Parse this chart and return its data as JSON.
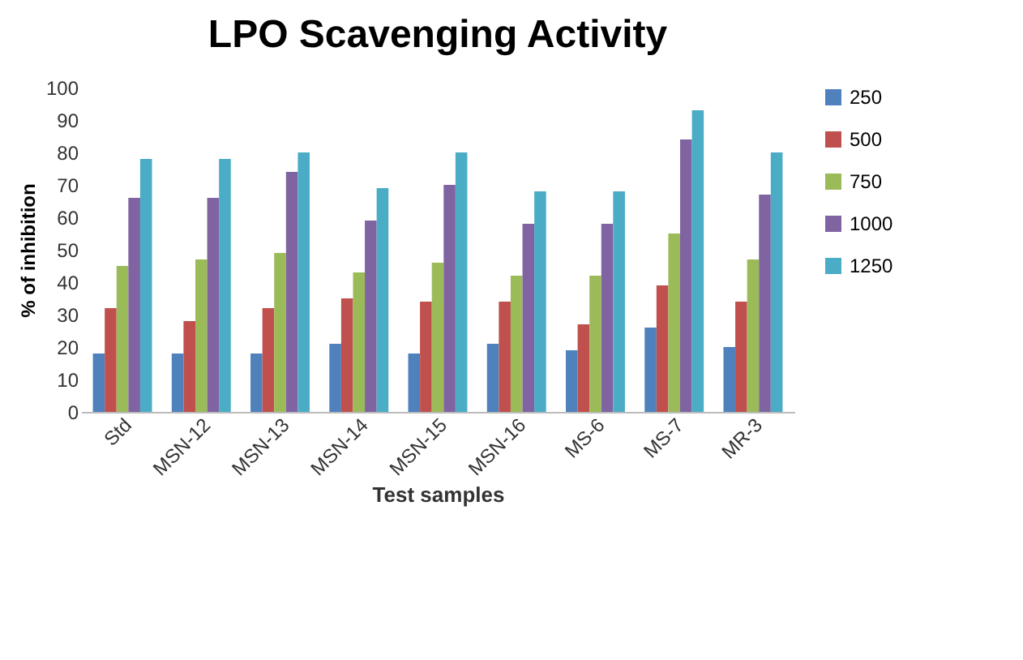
{
  "chart_data": {
    "type": "bar",
    "title": "LPO Scavenging Activity",
    "xlabel": "Test samples",
    "ylabel": "% of inhibition",
    "categories": [
      "Std",
      "MSN-12",
      "MSN-13",
      "MSN-14",
      "MSN-15",
      "MSN-16",
      "MS-6",
      "MS-7",
      "MR-3"
    ],
    "series": [
      {
        "name": "250",
        "color": "#4f81bd",
        "values": [
          18,
          18,
          18,
          21,
          18,
          21,
          19,
          26,
          20
        ]
      },
      {
        "name": "500",
        "color": "#c0504d",
        "values": [
          32,
          28,
          32,
          35,
          34,
          34,
          27,
          39,
          34
        ]
      },
      {
        "name": "750",
        "color": "#9bbb59",
        "values": [
          45,
          47,
          49,
          43,
          46,
          42,
          42,
          55,
          47
        ]
      },
      {
        "name": "1000",
        "color": "#8064a2",
        "values": [
          66,
          66,
          74,
          59,
          70,
          58,
          58,
          84,
          67
        ]
      },
      {
        "name": "1250",
        "color": "#4bacc6",
        "values": [
          78,
          78,
          80,
          69,
          80,
          68,
          68,
          93,
          80
        ]
      }
    ],
    "ylim": [
      0,
      100
    ],
    "yticks": [
      0,
      10,
      20,
      30,
      40,
      50,
      60,
      70,
      80,
      90,
      100
    ],
    "legend": "right",
    "grid": false
  }
}
